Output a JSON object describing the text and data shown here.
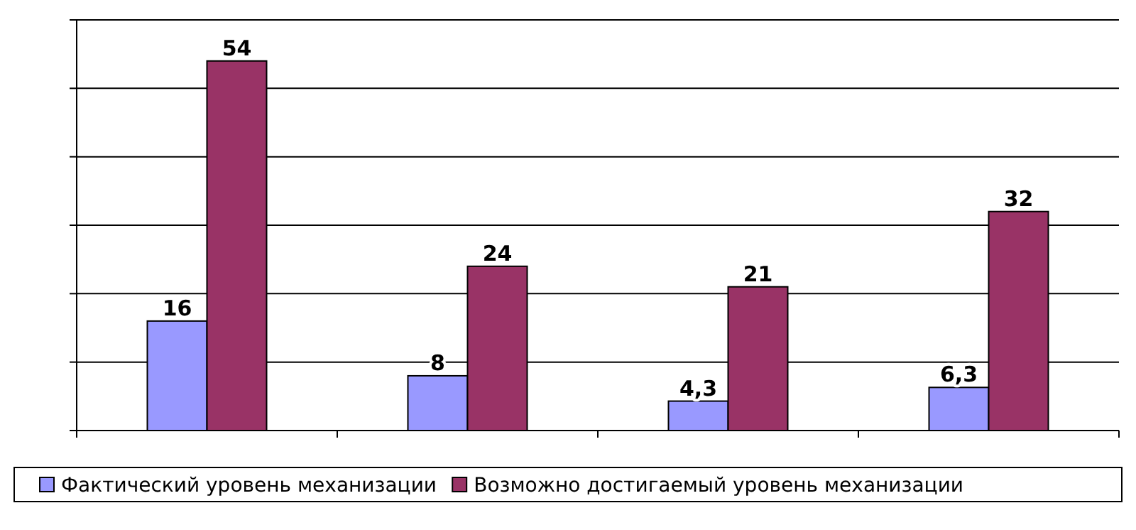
{
  "chart_data": {
    "type": "bar",
    "categories": [
      null,
      null,
      null,
      null
    ],
    "series": [
      {
        "name": "Фактический уровень механизации",
        "color": "#9999ff",
        "values": [
          16,
          8,
          4.3,
          6.3
        ],
        "value_labels": [
          "16",
          "8",
          "4,3",
          "6,3"
        ]
      },
      {
        "name": "Возможно достигаемый уровень механизации",
        "color": "#993366",
        "values": [
          54,
          24,
          21,
          32
        ],
        "value_labels": [
          "54",
          "24",
          "21",
          "32"
        ]
      }
    ],
    "ylim": [
      0,
      60
    ],
    "yticks": [
      {
        "value": 0,
        "label": null
      },
      {
        "value": 10,
        "label": null
      },
      {
        "value": 20,
        "label": null
      },
      {
        "value": 30,
        "label": null
      },
      {
        "value": 40,
        "label": null
      },
      {
        "value": 50,
        "label": null
      },
      {
        "value": 60,
        "label": null
      }
    ],
    "grid": "y",
    "legend": "bottom"
  }
}
